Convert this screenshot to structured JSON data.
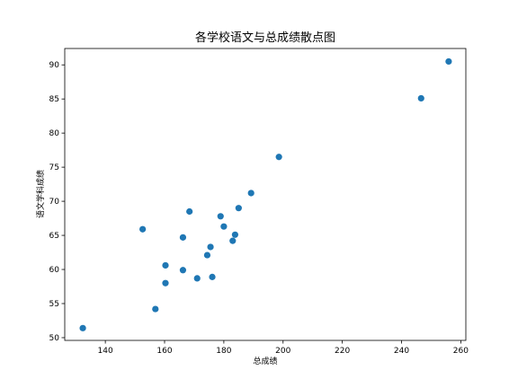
{
  "chart_data": {
    "type": "scatter",
    "title": "各学校语文与总成绩散点图",
    "xlabel": "总成绩",
    "ylabel": "语文学科成绩",
    "xlim": [
      126.3,
      261.7
    ],
    "ylim": [
      49.6,
      92.4
    ],
    "xticks": [
      140,
      160,
      180,
      200,
      220,
      240,
      260
    ],
    "yticks": [
      50,
      55,
      60,
      65,
      70,
      75,
      80,
      85,
      90
    ],
    "grid": false,
    "legend": "none",
    "marker_color": "#1f77b4",
    "points": [
      {
        "x": 132.4,
        "y": 51.4
      },
      {
        "x": 152.6,
        "y": 65.9
      },
      {
        "x": 156.9,
        "y": 54.2
      },
      {
        "x": 160.3,
        "y": 60.6
      },
      {
        "x": 160.3,
        "y": 58.0
      },
      {
        "x": 166.2,
        "y": 64.7
      },
      {
        "x": 166.2,
        "y": 59.9
      },
      {
        "x": 168.4,
        "y": 68.5
      },
      {
        "x": 171.0,
        "y": 58.7
      },
      {
        "x": 174.4,
        "y": 62.1
      },
      {
        "x": 175.5,
        "y": 63.3
      },
      {
        "x": 176.1,
        "y": 58.9
      },
      {
        "x": 178.9,
        "y": 67.8
      },
      {
        "x": 180.0,
        "y": 66.3
      },
      {
        "x": 183.0,
        "y": 64.2
      },
      {
        "x": 183.8,
        "y": 65.1
      },
      {
        "x": 185.0,
        "y": 69.0
      },
      {
        "x": 189.2,
        "y": 71.2
      },
      {
        "x": 198.6,
        "y": 76.5
      },
      {
        "x": 246.6,
        "y": 85.1
      },
      {
        "x": 255.9,
        "y": 90.5
      }
    ]
  }
}
